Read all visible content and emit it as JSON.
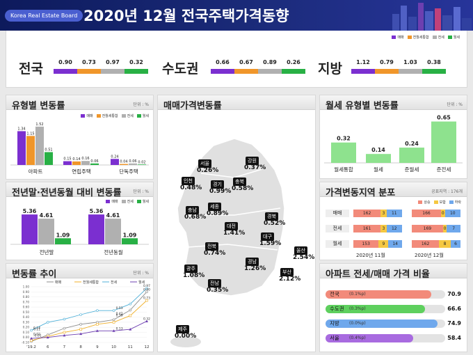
{
  "header": {
    "brand": "Korea Real Estate Board",
    "title": "2020년 12월  전국주택가격동향"
  },
  "colors": {
    "sale": "#7b2fd0",
    "combined": "#f0962a",
    "jeonse": "#b0b0b0",
    "wolse": "#28b045",
    "wolse_light": "#8ee28e",
    "up": "#f28a7a",
    "flat": "#f5c842",
    "down": "#6fa8ec"
  },
  "top_legend": [
    "매매",
    "전월세통합",
    "전세",
    "월세"
  ],
  "top_regions": [
    {
      "name": "전국",
      "values": [
        "0.90",
        "0.73",
        "0.97",
        "0.32"
      ]
    },
    {
      "name": "수도권",
      "values": [
        "0.66",
        "0.67",
        "0.89",
        "0.26"
      ]
    },
    {
      "name": "지방",
      "values": [
        "1.12",
        "0.79",
        "1.03",
        "0.38"
      ]
    }
  ],
  "type_change": {
    "title": "유형별 변동률",
    "unit": "단위 : %",
    "legend": [
      "매매",
      "전월세통합",
      "전세",
      "월세"
    ],
    "chart_data": {
      "type": "bar",
      "categories": [
        "아파트",
        "연립주택",
        "단독주택"
      ],
      "series": [
        {
          "name": "매매",
          "values": [
            1.34,
            0.15,
            0.24
          ]
        },
        {
          "name": "전월세통합",
          "values": [
            1.15,
            0.14,
            0.04
          ]
        },
        {
          "name": "전세",
          "values": [
            1.52,
            0.16,
            0.06
          ]
        },
        {
          "name": "월세",
          "values": [
            0.51,
            0.06,
            0.02
          ]
        }
      ],
      "labels": [
        [
          "1.34",
          "1.15",
          "1.52",
          "0.51"
        ],
        [
          "0.15",
          "0.14",
          "0.16",
          "0.06"
        ],
        [
          "0.24",
          "0.04",
          "0.06",
          "0.02"
        ]
      ]
    }
  },
  "yoy": {
    "title": "전년말·전년동월 대비 변동률",
    "unit": "단위 : %",
    "legend": [
      "매매",
      "전세",
      "월세"
    ],
    "chart_data": {
      "type": "bar",
      "categories": [
        "전년말",
        "전년동월"
      ],
      "series": [
        {
          "name": "매매",
          "values": [
            5.36,
            5.36
          ]
        },
        {
          "name": "전세",
          "values": [
            4.61,
            4.61
          ]
        },
        {
          "name": "월세",
          "values": [
            1.09,
            1.09
          ]
        }
      ],
      "labels": [
        [
          "5.36",
          "4.61",
          "1.09"
        ],
        [
          "5.36",
          "4.61",
          "1.09"
        ]
      ]
    }
  },
  "trend": {
    "title": "변동률 추이",
    "unit": "단위 : %",
    "legend": [
      "매매",
      "전월세통합",
      "전세",
      "월세"
    ],
    "chart_data": {
      "type": "line",
      "x": [
        "'19.2",
        "6",
        "7",
        "8",
        "9",
        "10",
        "11",
        "12"
      ],
      "yticks": [
        "1.00",
        "0.90",
        "0.80",
        "0.70",
        "0.60",
        "0.50",
        "0.40",
        "0.30",
        "0.20",
        "0.10",
        "0.00",
        "-0.10"
      ],
      "ylim": [
        -0.1,
        1.0
      ],
      "series": [
        {
          "name": "매매",
          "values": [
            -0.08,
            0.05,
            0.18,
            0.26,
            0.3,
            0.35,
            0.54,
            0.9
          ]
        },
        {
          "name": "전월세통합",
          "values": [
            -0.06,
            0.02,
            0.1,
            0.16,
            0.26,
            0.3,
            0.43,
            0.73
          ]
        },
        {
          "name": "전세",
          "values": [
            0.14,
            0.3,
            0.36,
            0.45,
            0.53,
            0.53,
            0.66,
            0.97
          ]
        },
        {
          "name": "월세",
          "values": [
            -0.02,
            0.0,
            0.04,
            0.07,
            0.13,
            0.13,
            0.16,
            0.32
          ]
        }
      ],
      "data_labels": [
        "0.14",
        "0.11",
        "0.02",
        "-0.01",
        "0.53",
        "0.42",
        "0.39",
        "0.13",
        "0.97",
        "0.90",
        "0.73",
        "0.32"
      ]
    }
  },
  "map": {
    "title": "매매가격변동률",
    "cities": [
      {
        "name": "서울",
        "value": "0.26%"
      },
      {
        "name": "강원",
        "value": "0.37%"
      },
      {
        "name": "인천",
        "value": "0.48%"
      },
      {
        "name": "경기",
        "value": "0.99%"
      },
      {
        "name": "충북",
        "value": "0.58%"
      },
      {
        "name": "세종",
        "value": "0.89%"
      },
      {
        "name": "충남",
        "value": "0.68%"
      },
      {
        "name": "경북",
        "value": "0.52%"
      },
      {
        "name": "대전",
        "value": "1.41%"
      },
      {
        "name": "대구",
        "value": "1.59%"
      },
      {
        "name": "전북",
        "value": "0.74%"
      },
      {
        "name": "울산",
        "value": "2.54%"
      },
      {
        "name": "경남",
        "value": "1.26%"
      },
      {
        "name": "광주",
        "value": "1.08%"
      },
      {
        "name": "부산",
        "value": "2.12%"
      },
      {
        "name": "전남",
        "value": "0.35%"
      },
      {
        "name": "제주",
        "value": "0.00%"
      }
    ]
  },
  "wolse_type": {
    "title": "월세 유형별 변동률",
    "unit": "단위 : %",
    "chart_data": {
      "type": "bar",
      "categories": [
        "월세통합",
        "월세",
        "준월세",
        "준전세"
      ],
      "values": [
        0.32,
        0.14,
        0.24,
        0.65
      ],
      "labels": [
        "0.32",
        "0.14",
        "0.24",
        "0.65"
      ]
    }
  },
  "distribution": {
    "title": "가격변동지역 분포",
    "unit": "공표지역 : 176개",
    "legend": [
      "상승",
      "보합",
      "하락"
    ],
    "rows": [
      {
        "label": "매매",
        "nov": [
          "162",
          "3",
          "11"
        ],
        "dec": [
          "166",
          "0",
          "10"
        ]
      },
      {
        "label": "전세",
        "nov": [
          "161",
          "3",
          "12"
        ],
        "dec": [
          "169",
          "0",
          "7"
        ]
      },
      {
        "label": "월세",
        "nov": [
          "153",
          "9",
          "14"
        ],
        "dec": [
          "162",
          "8",
          "6"
        ]
      }
    ],
    "col_labels": [
      "2020년 11월",
      "2020년 12월"
    ]
  },
  "ratio": {
    "title": "아파트 전세/매매 가격 비율",
    "rows": [
      {
        "region": "전국",
        "change": "(0.1%p)",
        "value": "70.9",
        "pct": 70.9,
        "color": "#f28a7a"
      },
      {
        "region": "수도권",
        "change": "(0.3%p)",
        "value": "66.6",
        "pct": 66.6,
        "color": "#5ed05e"
      },
      {
        "region": "지방",
        "change": "(0.0%p)",
        "value": "74.9",
        "pct": 74.9,
        "color": "#6fa8ec"
      },
      {
        "region": "서울",
        "change": "(0.4%p)",
        "value": "58.4",
        "pct": 58.4,
        "color": "#a86be0"
      }
    ]
  }
}
